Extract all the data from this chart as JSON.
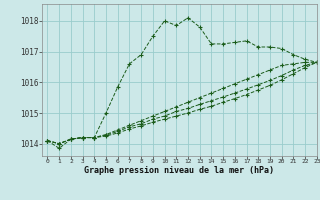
{
  "title": "Graphe pression niveau de la mer (hPa)",
  "background_color": "#cce8e8",
  "grid_color": "#99cccc",
  "line_color": "#1a5c1a",
  "xlim": [
    -0.5,
    23
  ],
  "ylim": [
    1013.6,
    1018.55
  ],
  "yticks": [
    1014,
    1015,
    1016,
    1017,
    1018
  ],
  "xticks": [
    0,
    1,
    2,
    3,
    4,
    5,
    6,
    7,
    8,
    9,
    10,
    11,
    12,
    13,
    14,
    15,
    16,
    17,
    18,
    19,
    20,
    21,
    22,
    23
  ],
  "series": [
    [
      1014.1,
      1013.85,
      1014.15,
      1014.2,
      1014.2,
      1015.0,
      1015.85,
      1016.6,
      1016.9,
      1017.5,
      1018.0,
      1017.85,
      1018.1,
      1017.8,
      1017.25,
      1017.25,
      1017.3,
      1017.35,
      1017.15,
      1017.15,
      1017.1,
      1016.9,
      1016.75,
      1016.65
    ],
    [
      1014.1,
      1014.0,
      1014.15,
      1014.2,
      1014.2,
      1014.3,
      1014.45,
      1014.6,
      1014.75,
      1014.9,
      1015.05,
      1015.2,
      1015.35,
      1015.5,
      1015.65,
      1015.8,
      1015.95,
      1016.1,
      1016.25,
      1016.4,
      1016.55,
      1016.6,
      1016.65,
      1016.65
    ],
    [
      1014.1,
      1014.0,
      1014.15,
      1014.2,
      1014.2,
      1014.28,
      1014.4,
      1014.55,
      1014.65,
      1014.8,
      1014.9,
      1015.05,
      1015.15,
      1015.28,
      1015.4,
      1015.52,
      1015.65,
      1015.78,
      1015.92,
      1016.06,
      1016.22,
      1016.4,
      1016.55,
      1016.65
    ],
    [
      1014.1,
      1014.0,
      1014.15,
      1014.2,
      1014.2,
      1014.25,
      1014.35,
      1014.48,
      1014.58,
      1014.7,
      1014.8,
      1014.9,
      1015.0,
      1015.12,
      1015.22,
      1015.35,
      1015.47,
      1015.6,
      1015.75,
      1015.9,
      1016.08,
      1016.28,
      1016.48,
      1016.65
    ]
  ]
}
